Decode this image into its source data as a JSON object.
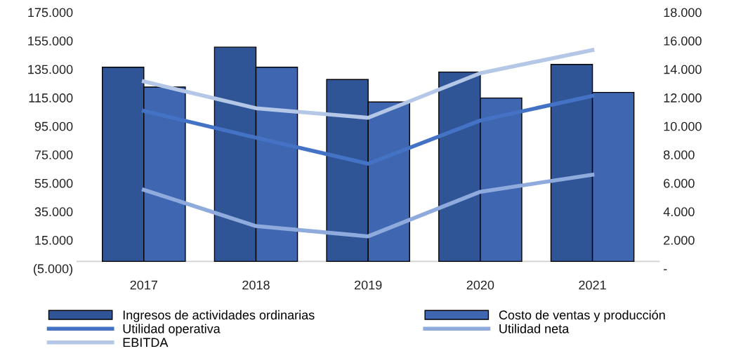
{
  "chart_data": {
    "type": "bar",
    "categories": [
      "2017",
      "2018",
      "2019",
      "2020",
      "2021"
    ],
    "series": [
      {
        "name": "Ingresos de actividades ordinarias",
        "color": "#2f5597",
        "values": [
          136400,
          150500,
          127800,
          133000,
          138400
        ]
      },
      {
        "name": "Costo de ventas y producción",
        "color": "#3f66b0",
        "values": [
          122500,
          136400,
          112000,
          114800,
          118700
        ]
      },
      {
        "name": "Utilidad operativa",
        "type": "line",
        "axis": "y2",
        "color": "#4472c4",
        "values": [
          11070,
          9190,
          7360,
          10400,
          12130
        ]
      },
      {
        "name": "Utilidad neta",
        "type": "line",
        "axis": "y2",
        "color": "#8faadc",
        "values": [
          5530,
          2980,
          2260,
          5390,
          6590
        ]
      },
      {
        "name": "EBITDA",
        "type": "line",
        "axis": "y2",
        "color": "#b4c7e7",
        "values": [
          13140,
          11260,
          10590,
          13720,
          15350
        ]
      }
    ],
    "ylim": [
      -5000,
      175000
    ],
    "yticks": [
      {
        "value": -5000,
        "label": "(5.000)"
      },
      {
        "value": 15000,
        "label": "15.000"
      },
      {
        "value": 35000,
        "label": "35.000"
      },
      {
        "value": 55000,
        "label": "55.000"
      },
      {
        "value": 75000,
        "label": "75.000"
      },
      {
        "value": 95000,
        "label": "95.000"
      },
      {
        "value": 115000,
        "label": "115.000"
      },
      {
        "value": 135000,
        "label": "135.000"
      },
      {
        "value": 155000,
        "label": "155.000"
      },
      {
        "value": 175000,
        "label": "175.000"
      }
    ],
    "y2lim": [
      0,
      18000
    ],
    "y2ticks": [
      {
        "value": 0,
        "label": "-"
      },
      {
        "value": 2000,
        "label": "2.000"
      },
      {
        "value": 4000,
        "label": "4.000"
      },
      {
        "value": 6000,
        "label": "6.000"
      },
      {
        "value": 8000,
        "label": "8.000"
      },
      {
        "value": 10000,
        "label": "10.000"
      },
      {
        "value": 12000,
        "label": "12.000"
      },
      {
        "value": 14000,
        "label": "14.000"
      },
      {
        "value": 16000,
        "label": "16.000"
      },
      {
        "value": 18000,
        "label": "18.000"
      }
    ],
    "legend": "bottom",
    "grid": false,
    "marker": "none",
    "line_style": "solid"
  }
}
